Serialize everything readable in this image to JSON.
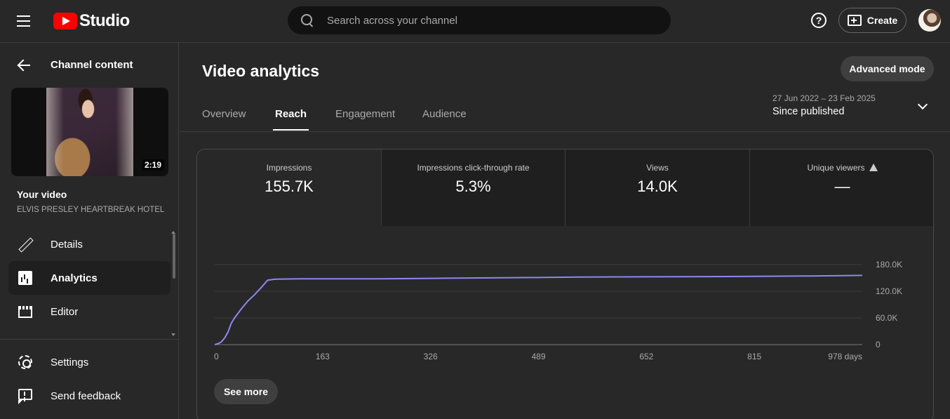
{
  "header": {
    "logo_text": "Studio",
    "search_placeholder": "Search across your channel",
    "help_label": "?",
    "create_label": "Create"
  },
  "sidebar": {
    "back_label": "Channel content",
    "thumbnail_duration": "2:19",
    "your_video_label": "Your video",
    "video_title": "ELVIS PRESLEY HEARTBREAK HOTEL",
    "nav_items": [
      {
        "label": "Details",
        "icon": "pencil-icon",
        "active": false
      },
      {
        "label": "Analytics",
        "icon": "analytics-icon",
        "active": true
      },
      {
        "label": "Editor",
        "icon": "editor-icon",
        "active": false
      }
    ],
    "bottom_items": [
      {
        "label": "Settings",
        "icon": "gear-icon"
      },
      {
        "label": "Send feedback",
        "icon": "feedback-icon"
      }
    ]
  },
  "main": {
    "title": "Video analytics",
    "advanced_label": "Advanced mode",
    "tabs": [
      "Overview",
      "Reach",
      "Engagement",
      "Audience"
    ],
    "active_tab": "Reach",
    "date_range": "27 Jun 2022 – 23 Feb 2025",
    "date_label": "Since published",
    "metrics": [
      {
        "label": "Impressions",
        "value": "155.7K"
      },
      {
        "label": "Impressions click-through rate",
        "value": "5.3%"
      },
      {
        "label": "Views",
        "value": "14.0K"
      },
      {
        "label": "Unique viewers",
        "value": "—"
      }
    ],
    "see_more_label": "See more"
  },
  "chart_data": {
    "type": "line",
    "series": [
      {
        "x": [
          0,
          5,
          10,
          15,
          20,
          25,
          30,
          40,
          50,
          60,
          70,
          80,
          90,
          100,
          130,
          163,
          250,
          326,
          400,
          489,
          550,
          652,
          750,
          815,
          900,
          978
        ],
        "y": [
          0,
          2000,
          6000,
          15000,
          28000,
          48000,
          60000,
          80000,
          98000,
          112000,
          128000,
          145000,
          147000,
          147500,
          148000,
          148000,
          148000,
          149000,
          150000,
          151000,
          152000,
          152500,
          153000,
          153500,
          154500,
          155700
        ]
      }
    ],
    "x_ticks": [
      "0",
      "163",
      "326",
      "489",
      "652",
      "815",
      "978 days"
    ],
    "y_ticks": [
      "0",
      "60.0K",
      "120.0K",
      "180.0K"
    ],
    "xlim": [
      0,
      978
    ],
    "ylim": [
      0,
      180000
    ],
    "line_color": "#8c88f2",
    "grid": true
  }
}
